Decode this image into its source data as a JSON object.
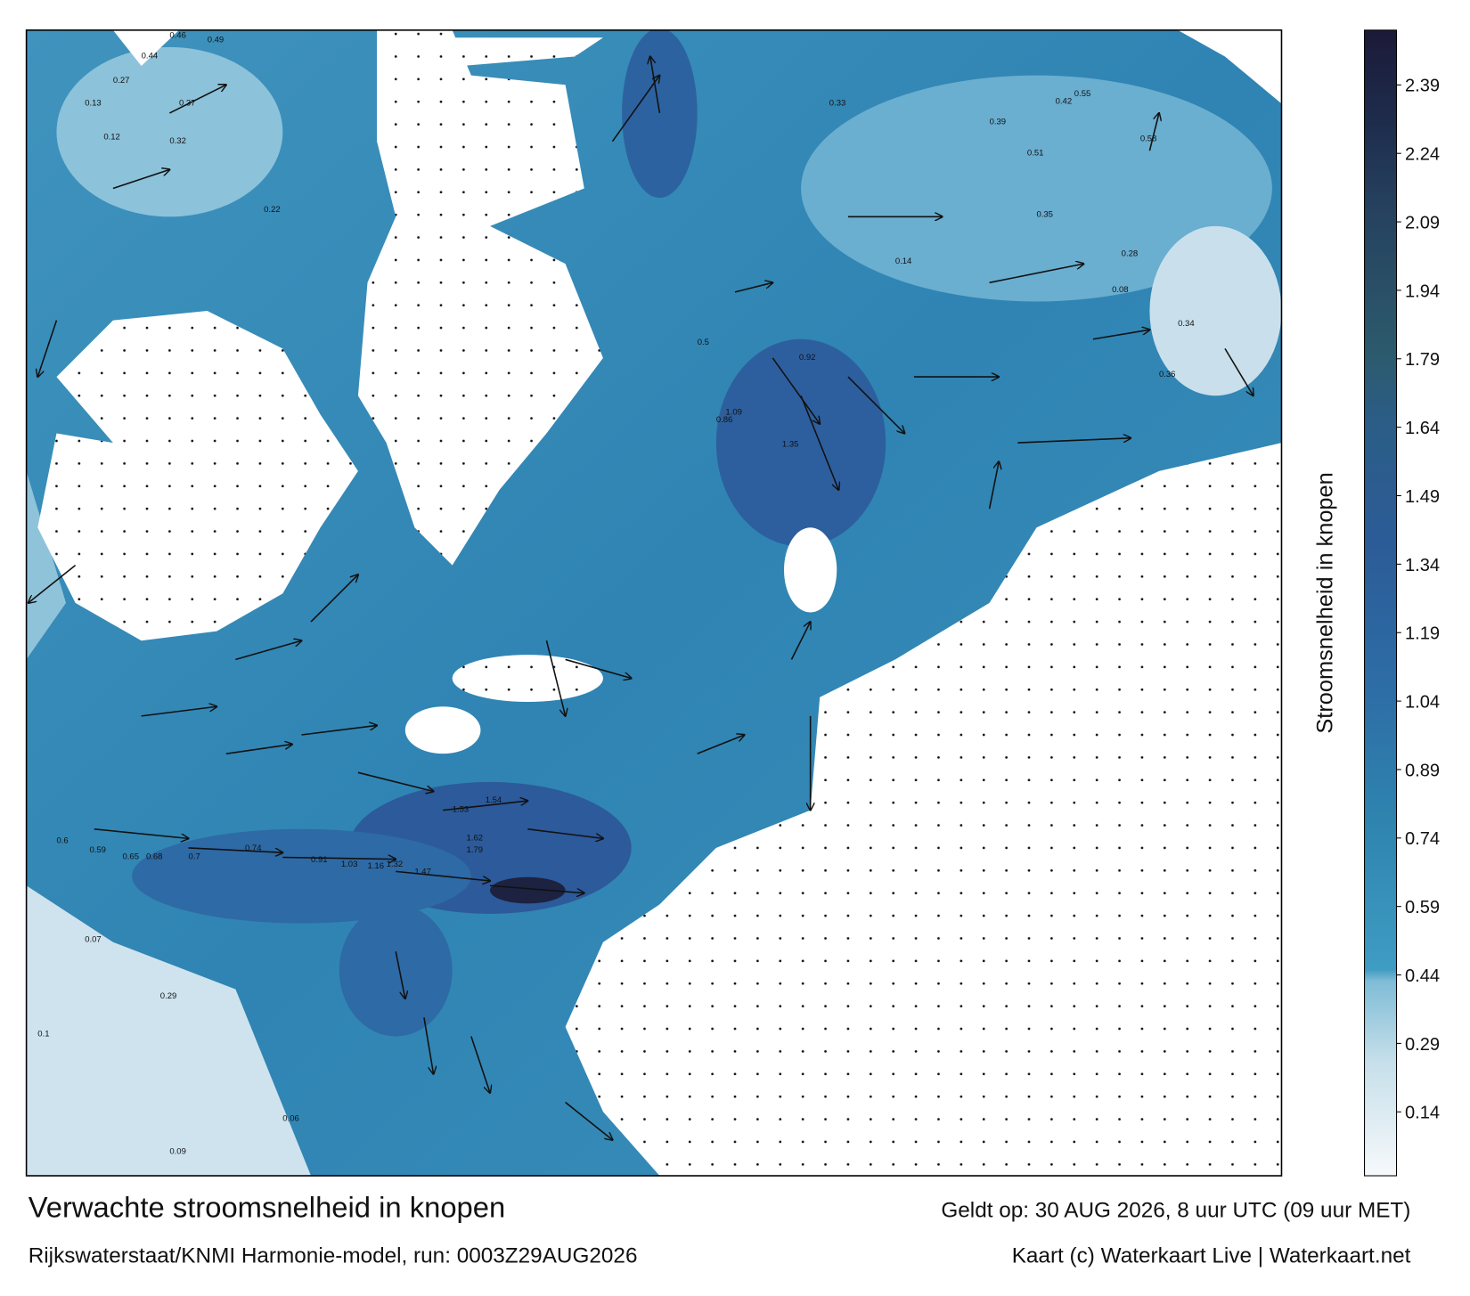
{
  "title": "Verwachte stroomsnelheid in knopen",
  "subtitle": "Rijkswaterstaat/KNMI Harmonie-model, run: 0003Z29AUG2026",
  "valid_time": "Geldt op: 30 AUG 2026, 8 uur UTC (09 uur MET)",
  "credit": "Kaart (c) Waterkaart Live | Waterkaart.net",
  "colorbar": {
    "label": "Stroomsnelheid in knopen",
    "lim": [
      0,
      2.51
    ],
    "ticks": [
      0.14,
      0.29,
      0.44,
      0.59,
      0.74,
      0.89,
      1.04,
      1.19,
      1.34,
      1.49,
      1.64,
      1.79,
      1.94,
      2.09,
      2.24,
      2.39
    ]
  },
  "map_labels": [
    "0.46",
    "0.49",
    "0.44",
    "0.27",
    "0.13",
    "0.32",
    "0.12",
    "0.37",
    "0.22",
    "0.6",
    "0.59",
    "0.65",
    "0.68",
    "0.7",
    "0.74",
    "0.91",
    "1.03",
    "1.16",
    "1.32",
    "1.47",
    "1.53",
    "1.54",
    "1.62",
    "1.79",
    "1.09",
    "1.35",
    "0.92",
    "0.86",
    "0.5",
    "0.58",
    "0.42",
    "0.33",
    "0.39",
    "0.51",
    "0.55",
    "0.35",
    "0.14",
    "0.08",
    "0.07",
    "0.09",
    "0.06",
    "0.1",
    "0.29",
    "0.36",
    "0.28",
    "0.34"
  ]
}
